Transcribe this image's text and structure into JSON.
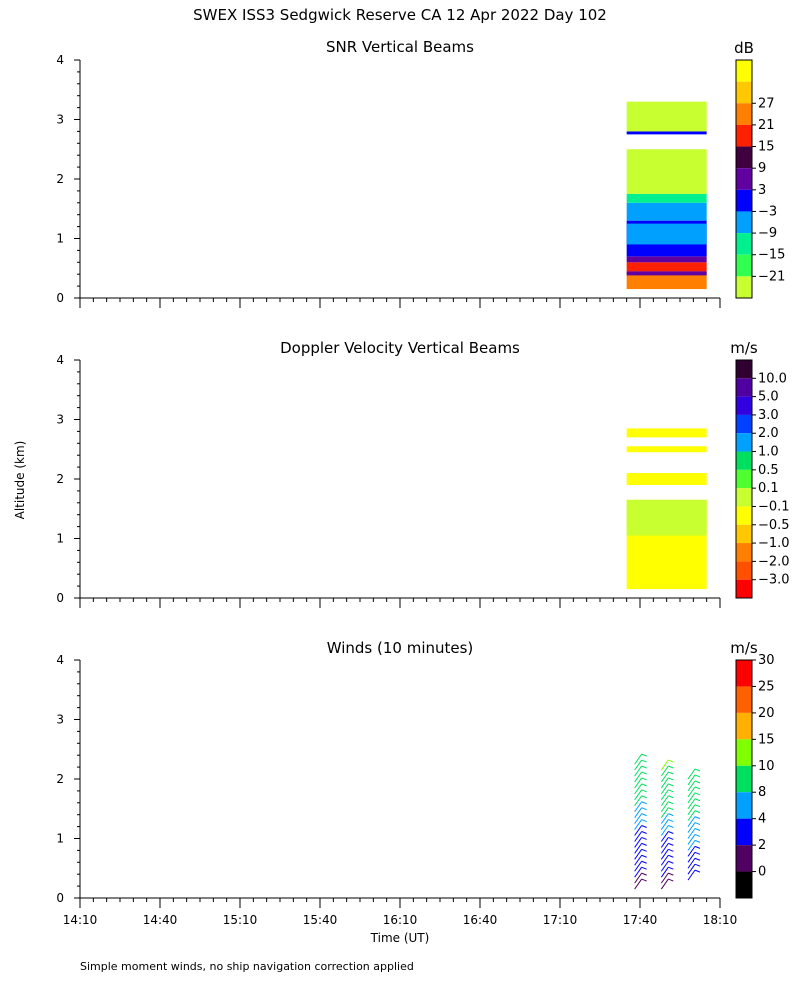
{
  "title": "SWEX ISS3 Sedgwick Reserve CA  12 Apr 2022 Day 102",
  "footnote": "Simple moment winds, no ship navigation correction applied",
  "y_label": "Altitude (km)",
  "x_label": "Time (UT)",
  "x_ticks": [
    "14:10",
    "14:40",
    "15:10",
    "15:40",
    "16:10",
    "16:40",
    "17:10",
    "17:40",
    "18:10"
  ],
  "y_ticks": [
    "0",
    "1",
    "2",
    "3",
    "4"
  ],
  "panels": [
    {
      "title": "SNR Vertical Beams",
      "unit": "dB"
    },
    {
      "title": "Doppler Velocity Vertical Beams",
      "unit": "m/s"
    },
    {
      "title": "Winds (10 minutes)",
      "unit": "m/s"
    }
  ],
  "chart_data": [
    {
      "type": "heatmap",
      "title": "SNR Vertical Beams",
      "xlabel": "",
      "ylabel": "Altitude (km)",
      "xlim": [
        "14:10",
        "18:10"
      ],
      "ylim": [
        0,
        4
      ],
      "colorbar": {
        "unit": "dB",
        "levels": [
          "27",
          "21",
          "15",
          "9",
          "3",
          "−3",
          "−9",
          "−15",
          "−21"
        ],
        "colors": [
          "#ffff00",
          "#ffc800",
          "#ff8000",
          "#ff2000",
          "#400040",
          "#6000a0",
          "#0000ff",
          "#00a0ff",
          "#00f090",
          "#30ff50",
          "#c8ff30"
        ]
      },
      "layers": [
        {
          "t0": "17:35",
          "t1": "18:05",
          "z0": 0.15,
          "z1": 0.45,
          "color": "#ff8000"
        },
        {
          "t0": "17:35",
          "t1": "18:05",
          "z0": 0.38,
          "z1": 0.45,
          "color": "#6000a0"
        },
        {
          "t0": "17:35",
          "t1": "18:05",
          "z0": 0.45,
          "z1": 0.6,
          "color": "#ff2000"
        },
        {
          "t0": "17:35",
          "t1": "18:05",
          "z0": 0.6,
          "z1": 0.7,
          "color": "#6000a0"
        },
        {
          "t0": "17:35",
          "t1": "18:05",
          "z0": 0.7,
          "z1": 1.3,
          "color": "#0000ff"
        },
        {
          "t0": "17:35",
          "t1": "18:05",
          "z0": 0.9,
          "z1": 1.25,
          "color": "#00a0ff"
        },
        {
          "t0": "17:35",
          "t1": "18:05",
          "z0": 1.3,
          "z1": 1.6,
          "color": "#00a0ff"
        },
        {
          "t0": "17:35",
          "t1": "18:05",
          "z0": 1.6,
          "z1": 1.75,
          "color": "#00f090"
        },
        {
          "t0": "17:35",
          "t1": "18:05",
          "z0": 1.75,
          "z1": 2.5,
          "color": "#c8ff30"
        },
        {
          "t0": "17:35",
          "t1": "18:05",
          "z0": 2.75,
          "z1": 2.8,
          "color": "#0000ff"
        },
        {
          "t0": "17:35",
          "t1": "18:05",
          "z0": 2.8,
          "z1": 3.3,
          "color": "#c8ff30"
        }
      ]
    },
    {
      "type": "heatmap",
      "title": "Doppler Velocity Vertical Beams",
      "xlabel": "",
      "ylabel": "Altitude (km)",
      "xlim": [
        "14:10",
        "18:10"
      ],
      "ylim": [
        0,
        4
      ],
      "colorbar": {
        "unit": "m/s",
        "levels": [
          "10.0",
          "5.0",
          "3.0",
          "2.0",
          "1.0",
          "0.5",
          "0.1",
          "−0.1",
          "−0.5",
          "−1.0",
          "−2.0",
          "−3.0"
        ],
        "colors": [
          "#300030",
          "#5000a0",
          "#3000e0",
          "#0040ff",
          "#00a0ff",
          "#00e060",
          "#50ff30",
          "#c8ff30",
          "#ffff00",
          "#ffc800",
          "#ff8000",
          "#ff5000",
          "#ff0000"
        ]
      },
      "layers": [
        {
          "t0": "17:35",
          "t1": "18:05",
          "z0": 0.15,
          "z1": 1.65,
          "color": "#ffff00"
        },
        {
          "t0": "17:35",
          "t1": "18:05",
          "z0": 1.05,
          "z1": 1.65,
          "color": "#c8ff30"
        },
        {
          "t0": "17:35",
          "t1": "18:05",
          "z0": 1.9,
          "z1": 2.1,
          "color": "#ffff00"
        },
        {
          "t0": "17:35",
          "t1": "18:05",
          "z0": 2.45,
          "z1": 2.55,
          "color": "#ffff00"
        },
        {
          "t0": "17:35",
          "t1": "18:05",
          "z0": 2.7,
          "z1": 2.85,
          "color": "#ffff00"
        }
      ]
    },
    {
      "type": "scatter",
      "title": "Winds (10 minutes)",
      "xlabel": "Time (UT)",
      "ylabel": "Altitude (km)",
      "xlim": [
        "14:10",
        "18:10"
      ],
      "ylim": [
        0,
        4
      ],
      "colorbar": {
        "unit": "m/s",
        "levels": [
          "30",
          "25",
          "20",
          "15",
          "10",
          "8",
          "4",
          "2",
          "0"
        ],
        "colors": [
          "#ff0000",
          "#ff6000",
          "#ffb000",
          "#80ff00",
          "#00e060",
          "#00a0ff",
          "#0000ff",
          "#500060",
          "#000000"
        ]
      },
      "profiles": [
        {
          "time": "17:38",
          "z0": 0.15,
          "z1": 2.25,
          "speed_low": 3,
          "speed_high": 14
        },
        {
          "time": "17:48",
          "z0": 0.15,
          "z1": 2.15,
          "speed_low": 3,
          "speed_high": 15
        },
        {
          "time": "17:58",
          "z0": 0.3,
          "z1": 2.05,
          "speed_low": 6,
          "speed_high": 13
        }
      ]
    }
  ]
}
